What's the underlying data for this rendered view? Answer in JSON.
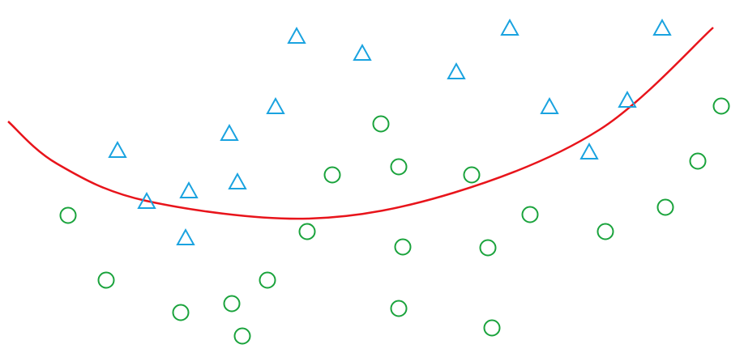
{
  "colors": {
    "background": "#ffffff",
    "boundary": "#e8141b",
    "class_a": "#1aa3e0",
    "class_b": "#1aa33c"
  },
  "shapes": {
    "class_a": "triangle",
    "class_b": "circle"
  },
  "chart_data": {
    "type": "scatter",
    "title": "",
    "xlabel": "",
    "ylabel": "",
    "grid": false,
    "legend": "none",
    "series": [
      {
        "marker": "triangle",
        "color": "#1aa3e0",
        "points": [
          [
            366,
            44
          ],
          [
            447,
            65
          ],
          [
            629,
            34
          ],
          [
            817,
            34
          ],
          [
            563,
            88
          ],
          [
            340,
            131
          ],
          [
            678,
            131
          ],
          [
            774,
            123
          ],
          [
            283,
            164
          ],
          [
            145,
            185
          ],
          [
            727,
            187
          ],
          [
            233,
            235
          ],
          [
            293,
            224
          ],
          [
            181,
            248
          ],
          [
            229,
            293
          ]
        ]
      },
      {
        "marker": "circle",
        "color": "#1aa33c",
        "points": [
          [
            890,
            131
          ],
          [
            470,
            153
          ],
          [
            861,
            199
          ],
          [
            410,
            216
          ],
          [
            492,
            206
          ],
          [
            582,
            216
          ],
          [
            84,
            266
          ],
          [
            654,
            265
          ],
          [
            821,
            256
          ],
          [
            379,
            286
          ],
          [
            497,
            305
          ],
          [
            602,
            306
          ],
          [
            747,
            286
          ],
          [
            131,
            346
          ],
          [
            330,
            346
          ],
          [
            223,
            386
          ],
          [
            286,
            375
          ],
          [
            492,
            381
          ],
          [
            299,
            415
          ],
          [
            607,
            405
          ]
        ]
      }
    ],
    "boundary_curve": [
      [
        10,
        150
      ],
      [
        70,
        202
      ],
      [
        180,
        248
      ],
      [
        380,
        270
      ],
      [
        560,
        238
      ],
      [
        740,
        160
      ],
      [
        880,
        34
      ]
    ]
  }
}
